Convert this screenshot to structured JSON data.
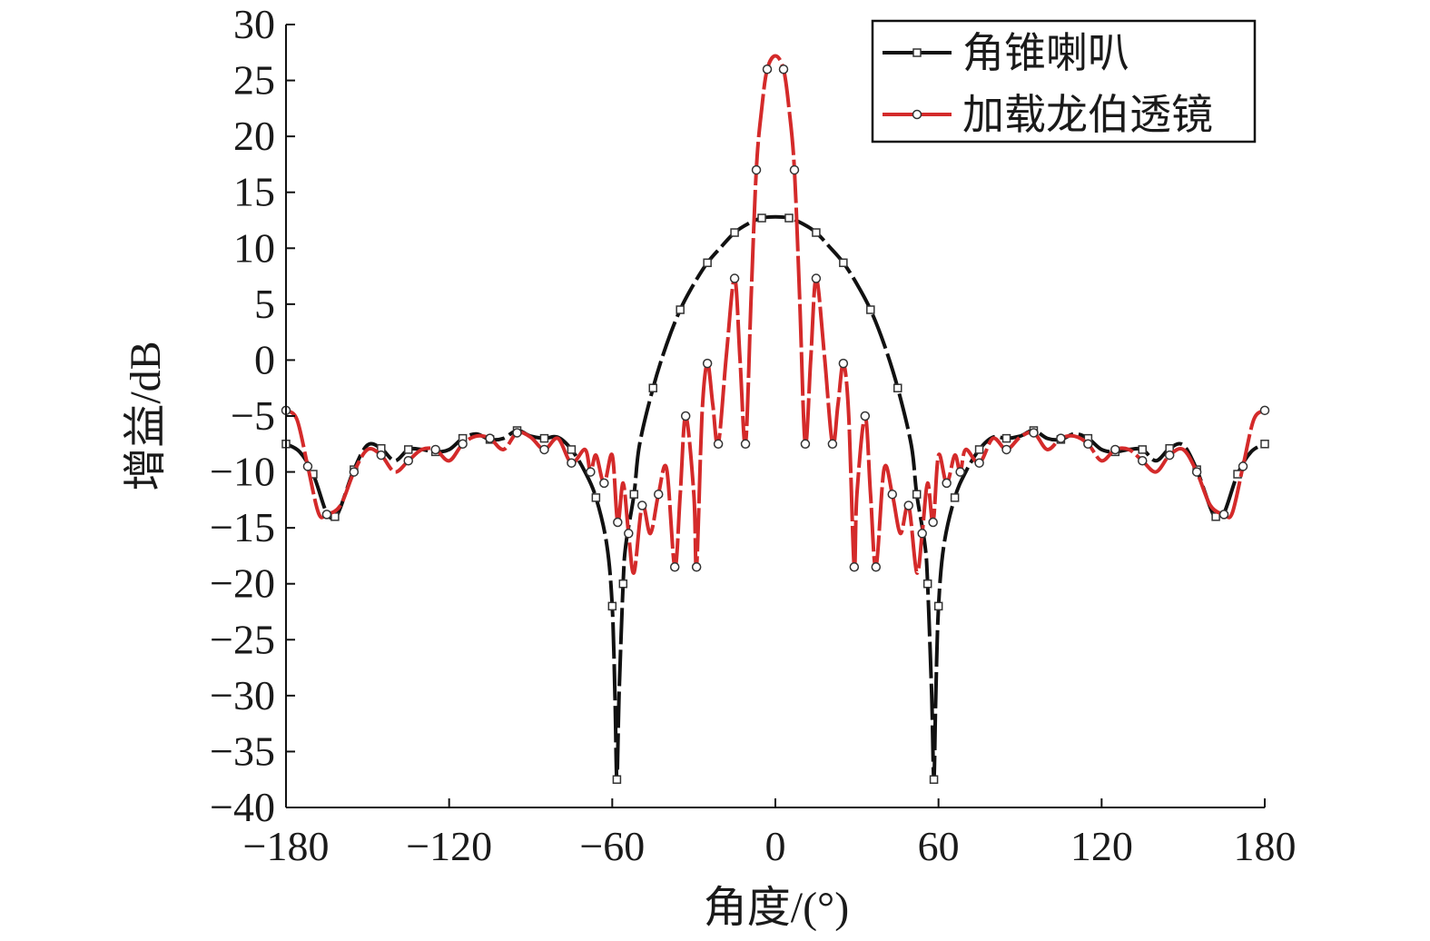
{
  "chart_data": {
    "type": "line",
    "xlabel": "角度/(°)",
    "ylabel": "增益/dB",
    "xlim": [
      -180,
      180
    ],
    "ylim": [
      -40,
      30
    ],
    "xticks": [
      -180,
      -120,
      -60,
      0,
      60,
      120,
      180
    ],
    "yticks": [
      -40,
      -35,
      -30,
      -25,
      -20,
      -15,
      -10,
      -5,
      0,
      5,
      10,
      15,
      20,
      25,
      30
    ],
    "grid": false,
    "legend_position": "top-right",
    "series": [
      {
        "name": "角锥喇叭",
        "color": "#111111",
        "marker": "square",
        "points": [
          [
            -180,
            -7.5
          ],
          [
            -175,
            -8.2
          ],
          [
            -170,
            -10.2
          ],
          [
            -165,
            -13.7
          ],
          [
            -162,
            -14.0
          ],
          [
            -160,
            -13.2
          ],
          [
            -155,
            -9.8
          ],
          [
            -150,
            -7.6
          ],
          [
            -145,
            -7.9
          ],
          [
            -140,
            -9.0
          ],
          [
            -135,
            -8.0
          ],
          [
            -130,
            -8.0
          ],
          [
            -125,
            -8.2
          ],
          [
            -120,
            -8.0
          ],
          [
            -115,
            -7.0
          ],
          [
            -110,
            -6.6
          ],
          [
            -105,
            -7.1
          ],
          [
            -100,
            -7.0
          ],
          [
            -95,
            -6.3
          ],
          [
            -90,
            -6.8
          ],
          [
            -85,
            -7.0
          ],
          [
            -80,
            -6.9
          ],
          [
            -75,
            -8.0
          ],
          [
            -70,
            -10.0
          ],
          [
            -66,
            -12.3
          ],
          [
            -62,
            -16.5
          ],
          [
            -60,
            -22.0
          ],
          [
            -59,
            -30.0
          ],
          [
            -58.3,
            -37.5
          ],
          [
            -57.5,
            -30.0
          ],
          [
            -56,
            -20.0
          ],
          [
            -55,
            -16.5
          ],
          [
            -52,
            -12.0
          ],
          [
            -50,
            -7.6
          ],
          [
            -45,
            -2.5
          ],
          [
            -40,
            1.4
          ],
          [
            -35,
            4.5
          ],
          [
            -30,
            6.8
          ],
          [
            -25,
            8.7
          ],
          [
            -20,
            10.1
          ],
          [
            -15,
            11.4
          ],
          [
            -10,
            12.2
          ],
          [
            -5,
            12.7
          ],
          [
            0,
            12.8
          ],
          [
            5,
            12.7
          ],
          [
            10,
            12.2
          ],
          [
            15,
            11.4
          ],
          [
            20,
            10.1
          ],
          [
            25,
            8.7
          ],
          [
            30,
            6.8
          ],
          [
            35,
            4.5
          ],
          [
            40,
            1.4
          ],
          [
            45,
            -2.5
          ],
          [
            50,
            -7.6
          ],
          [
            52,
            -12.0
          ],
          [
            55,
            -16.5
          ],
          [
            56,
            -20.0
          ],
          [
            57.5,
            -30.0
          ],
          [
            58.3,
            -37.5
          ],
          [
            59,
            -30.0
          ],
          [
            60,
            -22.0
          ],
          [
            62,
            -16.5
          ],
          [
            66,
            -12.3
          ],
          [
            70,
            -10.0
          ],
          [
            75,
            -8.0
          ],
          [
            80,
            -6.9
          ],
          [
            85,
            -7.0
          ],
          [
            90,
            -6.8
          ],
          [
            95,
            -6.3
          ],
          [
            100,
            -7.0
          ],
          [
            105,
            -7.1
          ],
          [
            110,
            -6.6
          ],
          [
            115,
            -7.0
          ],
          [
            120,
            -8.0
          ],
          [
            125,
            -8.2
          ],
          [
            130,
            -8.0
          ],
          [
            135,
            -8.0
          ],
          [
            140,
            -9.0
          ],
          [
            145,
            -7.9
          ],
          [
            150,
            -7.6
          ],
          [
            155,
            -9.8
          ],
          [
            160,
            -13.2
          ],
          [
            162,
            -14.0
          ],
          [
            165,
            -13.7
          ],
          [
            170,
            -10.2
          ],
          [
            175,
            -8.2
          ],
          [
            180,
            -7.5
          ]
        ]
      },
      {
        "name": "加载龙伯透镜",
        "color": "#d42a2a",
        "marker": "circle",
        "points": [
          [
            -180,
            -4.5
          ],
          [
            -176,
            -5.3
          ],
          [
            -172,
            -9.5
          ],
          [
            -168,
            -13.7
          ],
          [
            -165,
            -13.8
          ],
          [
            -160,
            -13.0
          ],
          [
            -155,
            -10.0
          ],
          [
            -150,
            -8.0
          ],
          [
            -145,
            -8.5
          ],
          [
            -140,
            -10.0
          ],
          [
            -135,
            -9.0
          ],
          [
            -130,
            -8.0
          ],
          [
            -125,
            -8.0
          ],
          [
            -120,
            -9.0
          ],
          [
            -115,
            -7.5
          ],
          [
            -110,
            -6.8
          ],
          [
            -105,
            -7.0
          ],
          [
            -100,
            -8.0
          ],
          [
            -95,
            -6.5
          ],
          [
            -90,
            -6.9
          ],
          [
            -85,
            -8.0
          ],
          [
            -80,
            -7.0
          ],
          [
            -75,
            -9.2
          ],
          [
            -70,
            -8.0
          ],
          [
            -68,
            -10.0
          ],
          [
            -66,
            -8.5
          ],
          [
            -63,
            -11.0
          ],
          [
            -60,
            -8.5
          ],
          [
            -58,
            -14.5
          ],
          [
            -56,
            -11.0
          ],
          [
            -54,
            -15.5
          ],
          [
            -52,
            -19.0
          ],
          [
            -49,
            -13.0
          ],
          [
            -46,
            -15.5
          ],
          [
            -43,
            -12.0
          ],
          [
            -40,
            -9.7
          ],
          [
            -37,
            -18.5
          ],
          [
            -35,
            -12.0
          ],
          [
            -33,
            -5.0
          ],
          [
            -30,
            -12.0
          ],
          [
            -29,
            -18.5
          ],
          [
            -27,
            -5.0
          ],
          [
            -25,
            -0.3
          ],
          [
            -23,
            -4.0
          ],
          [
            -21,
            -7.5
          ],
          [
            -18,
            0.5
          ],
          [
            -15,
            7.3
          ],
          [
            -13,
            0.0
          ],
          [
            -11,
            -7.5
          ],
          [
            -9,
            5.0
          ],
          [
            -7,
            17.0
          ],
          [
            -5,
            22.5
          ],
          [
            -3,
            26.0
          ],
          [
            0,
            27.2
          ],
          [
            3,
            26.0
          ],
          [
            5,
            22.5
          ],
          [
            7,
            17.0
          ],
          [
            9,
            5.0
          ],
          [
            11,
            -7.5
          ],
          [
            13,
            0.0
          ],
          [
            15,
            7.3
          ],
          [
            18,
            0.5
          ],
          [
            21,
            -7.5
          ],
          [
            23,
            -4.0
          ],
          [
            25,
            -0.3
          ],
          [
            27,
            -5.0
          ],
          [
            29,
            -18.5
          ],
          [
            30,
            -12.0
          ],
          [
            33,
            -5.0
          ],
          [
            35,
            -12.0
          ],
          [
            37,
            -18.5
          ],
          [
            40,
            -9.7
          ],
          [
            43,
            -12.0
          ],
          [
            46,
            -15.5
          ],
          [
            49,
            -13.0
          ],
          [
            52,
            -19.0
          ],
          [
            54,
            -15.5
          ],
          [
            56,
            -11.0
          ],
          [
            58,
            -14.5
          ],
          [
            60,
            -8.5
          ],
          [
            63,
            -11.0
          ],
          [
            66,
            -8.5
          ],
          [
            68,
            -10.0
          ],
          [
            70,
            -8.0
          ],
          [
            75,
            -9.2
          ],
          [
            80,
            -7.0
          ],
          [
            85,
            -8.0
          ],
          [
            90,
            -6.9
          ],
          [
            95,
            -6.5
          ],
          [
            100,
            -8.0
          ],
          [
            105,
            -7.0
          ],
          [
            110,
            -6.8
          ],
          [
            115,
            -7.5
          ],
          [
            120,
            -9.0
          ],
          [
            125,
            -8.0
          ],
          [
            130,
            -8.0
          ],
          [
            135,
            -9.0
          ],
          [
            140,
            -10.0
          ],
          [
            145,
            -8.5
          ],
          [
            150,
            -8.0
          ],
          [
            155,
            -10.0
          ],
          [
            160,
            -13.0
          ],
          [
            165,
            -13.8
          ],
          [
            168,
            -13.7
          ],
          [
            172,
            -9.5
          ],
          [
            176,
            -5.3
          ],
          [
            180,
            -4.5
          ]
        ]
      }
    ]
  }
}
